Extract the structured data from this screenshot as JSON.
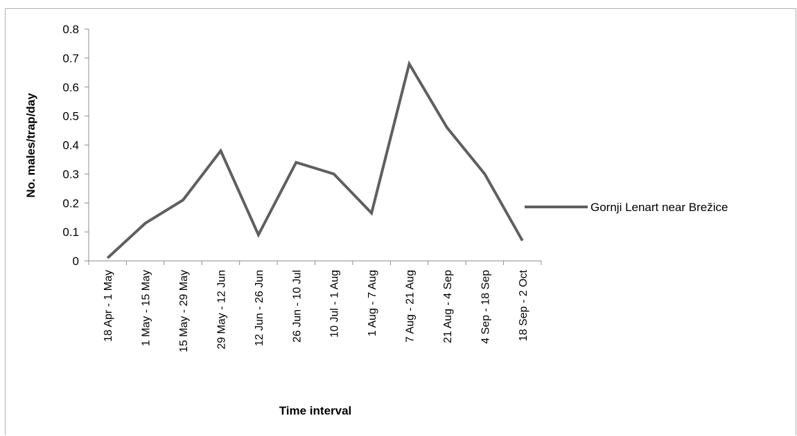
{
  "chart_data": {
    "type": "line",
    "title": "",
    "xlabel": "Time interval",
    "ylabel": "No. males/trap/day",
    "ylim": [
      0,
      0.8
    ],
    "yticks": [
      "0",
      "0.1",
      "0.2",
      "0.3",
      "0.4",
      "0.5",
      "0.6",
      "0.7",
      "0.8"
    ],
    "categories": [
      "18 Apr - 1 May",
      "1 May - 15 May",
      "15 May - 29 May",
      "29 May - 12 Jun",
      "12 Jun - 26 Jun",
      "26 Jun - 10 Jul",
      "10 Jul - 1 Aug",
      "1 Aug - 7 Aug",
      "7 Aug - 21 Aug",
      "21 Aug - 4 Sep",
      "4 Sep - 18 Sep",
      "18 Sep - 2 Oct"
    ],
    "series": [
      {
        "name": "Gornji Lenart near Brežice",
        "color": "#5f5f5f",
        "values": [
          0.01,
          0.13,
          0.21,
          0.38,
          0.09,
          0.34,
          0.3,
          0.165,
          0.68,
          0.46,
          0.3,
          0.07
        ]
      }
    ],
    "legend_position": "right",
    "grid": false
  }
}
